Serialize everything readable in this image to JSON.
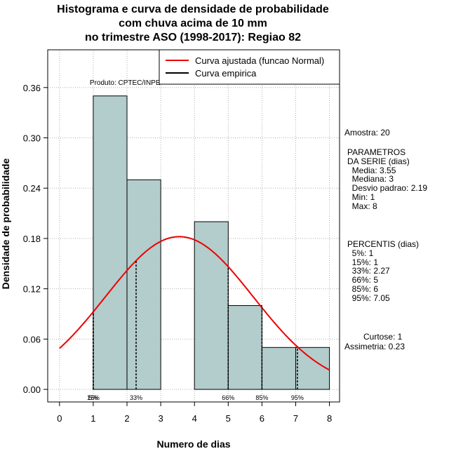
{
  "chart_data": {
    "type": "bar",
    "title_lines": [
      "Histograma e curva de densidade de probabilidade",
      "com chuva acima de 10 mm",
      "no trimestre ASO (1998-2017): Regiao 82"
    ],
    "xlabel": "Numero de dias",
    "ylabel": "Densidade de probabilidade",
    "xlim": [
      -0.35,
      8.3
    ],
    "ylim": [
      -0.015,
      0.405
    ],
    "x_ticks": [
      0,
      1,
      2,
      3,
      4,
      5,
      6,
      7,
      8
    ],
    "y_ticks": [
      0.0,
      0.06,
      0.12,
      0.18,
      0.24,
      0.3,
      0.36
    ],
    "y_tick_labels": [
      "0.00",
      "0.06",
      "0.12",
      "0.18",
      "0.24",
      "0.30",
      "0.36"
    ],
    "grid": true,
    "bins": [
      {
        "x0": 1,
        "x1": 2,
        "density": 0.35
      },
      {
        "x0": 2,
        "x1": 3,
        "density": 0.25
      },
      {
        "x0": 3,
        "x1": 4,
        "density": 0.0
      },
      {
        "x0": 4,
        "x1": 5,
        "density": 0.2
      },
      {
        "x0": 5,
        "x1": 6,
        "density": 0.1
      },
      {
        "x0": 6,
        "x1": 7,
        "density": 0.05
      },
      {
        "x0": 7,
        "x1": 8,
        "density": 0.05
      }
    ],
    "normal_curve": {
      "mean": 3.55,
      "sd": 2.19,
      "x_from": 0,
      "x_to": 8
    },
    "percentile_marks": [
      {
        "label": "5%",
        "x": 1
      },
      {
        "label": "15%",
        "x": 1
      },
      {
        "label": "33%",
        "x": 2.27
      },
      {
        "label": "66%",
        "x": 5
      },
      {
        "label": "85%",
        "x": 6
      },
      {
        "label": "95%",
        "x": 7.05
      }
    ],
    "legend": {
      "placement": "top-right",
      "entries": [
        {
          "label": "Curva ajustada (funcao Normal)",
          "color": "#ee0000"
        },
        {
          "label": "Curva empirica",
          "color": "#000000"
        }
      ]
    },
    "annotation": "Produto: CPTEC/INPE",
    "colors": {
      "bar_fill": "#b3cccc",
      "curve": "#ee0000",
      "grid": "#b0b0b0"
    }
  },
  "side_panel": {
    "amostra": "Amostra: 20",
    "parametros": "PARAMETROS\nDA SERIE (dias)\n  Media: 3.55\n  Mediana: 3\n  Desvio padrao: 2.19\n  Min: 1\n  Max: 8",
    "percentis": "PERCENTIS (dias)\n  5%: 1\n  15%: 1\n  33%: 2.27\n  66%: 5\n  85%: 6\n  95%: 7.05",
    "curtose": "Curtose: 1",
    "assimetria": "Assimetria: 0.23"
  }
}
